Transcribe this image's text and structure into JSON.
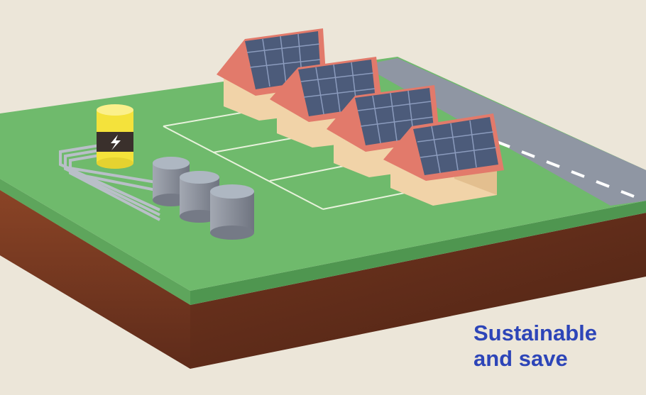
{
  "caption": {
    "line1": "Sustainable",
    "line2": "and save"
  },
  "colors": {
    "background": "#ece6d9",
    "grass": "#6fba6c",
    "soil": "#7b3a22",
    "road": "#8f96a3",
    "roof": "#e27a6b",
    "wall": "#f1d3a8",
    "solar_panel": "#4c5b7a",
    "battery_yellow": "#f4e23b",
    "tank": "#8c929e",
    "caption": "#2d45b8"
  },
  "icons": [
    "lightning-bolt-icon"
  ]
}
